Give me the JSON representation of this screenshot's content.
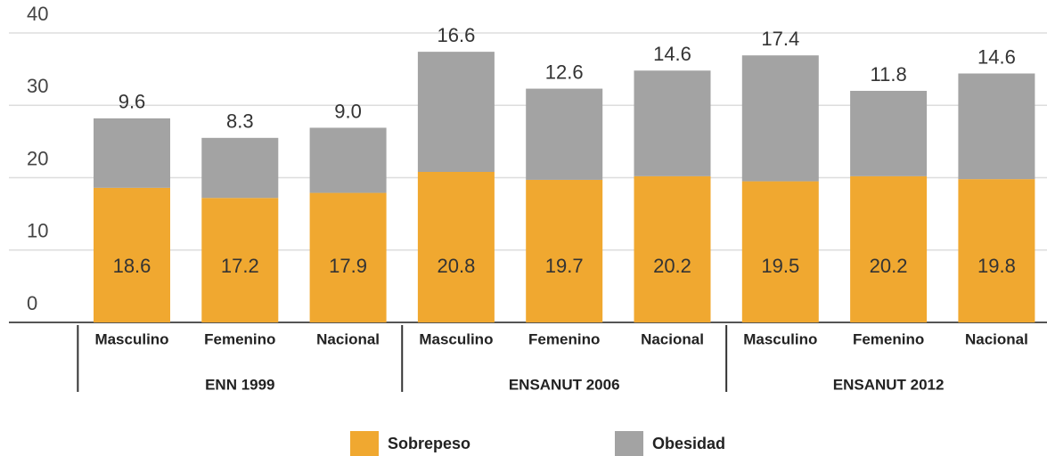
{
  "chart_data": {
    "type": "stacked_bar",
    "groups": [
      {
        "label": "ENN 1999",
        "categories": [
          "Masculino",
          "Femenino",
          "Nacional"
        ]
      },
      {
        "label": "ENSANUT 2006",
        "categories": [
          "Masculino",
          "Femenino",
          "Nacional"
        ]
      },
      {
        "label": "ENSANUT 2012",
        "categories": [
          "Masculino",
          "Femenino",
          "Nacional"
        ]
      }
    ],
    "series": [
      {
        "name": "Sobrepeso",
        "color": "#f0a830",
        "values": [
          18.6,
          17.2,
          17.9,
          20.8,
          19.7,
          20.2,
          19.5,
          20.2,
          19.8
        ]
      },
      {
        "name": "Obesidad",
        "color": "#a3a3a3",
        "values": [
          9.6,
          8.3,
          9.0,
          16.6,
          12.6,
          14.6,
          17.4,
          11.8,
          14.6
        ],
        "value_labels": [
          "9.6",
          "8.3",
          "9.0",
          "16.6",
          "12.6",
          "14.6",
          "17.4",
          "11.8",
          "14.6"
        ]
      }
    ],
    "ylim": [
      0,
      40
    ],
    "yticks": [
      0,
      10,
      20,
      30,
      40
    ],
    "grid": true,
    "legend": "bottom"
  }
}
